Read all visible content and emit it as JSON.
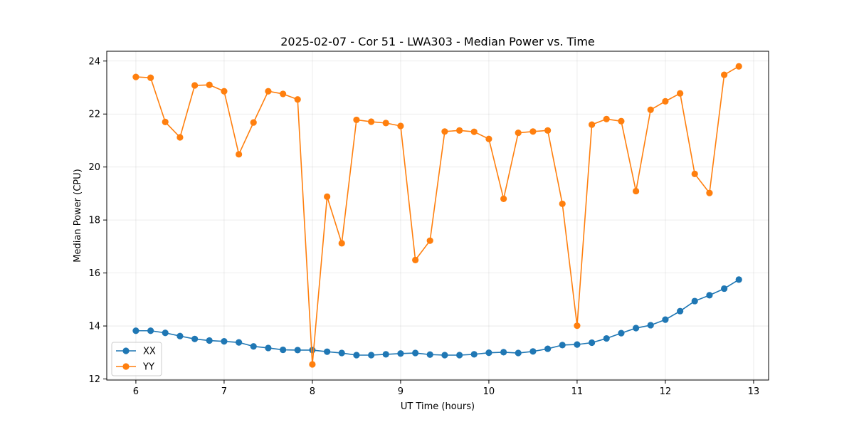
{
  "chart_data": {
    "type": "line",
    "title": "2025-02-07 - Cor 51 - LWA303 - Median Power vs. Time",
    "xlabel": "UT Time (hours)",
    "ylabel": "Median Power (CPU)",
    "xlim": [
      5.67,
      13.17
    ],
    "ylim": [
      11.96,
      24.37
    ],
    "xticks": [
      6,
      7,
      8,
      9,
      10,
      11,
      12,
      13
    ],
    "yticks": [
      12,
      14,
      16,
      18,
      20,
      22,
      24
    ],
    "grid": true,
    "legend_position": "lower-left",
    "x": [
      6.0,
      6.167,
      6.333,
      6.5,
      6.667,
      6.833,
      7.0,
      7.167,
      7.333,
      7.5,
      7.667,
      7.833,
      8.0,
      8.167,
      8.333,
      8.5,
      8.667,
      8.833,
      9.0,
      9.167,
      9.333,
      9.5,
      9.667,
      9.833,
      10.0,
      10.167,
      10.333,
      10.5,
      10.667,
      10.833,
      11.0,
      11.167,
      11.333,
      11.5,
      11.667,
      11.833,
      12.0,
      12.167,
      12.333,
      12.5,
      12.667,
      12.833
    ],
    "series": [
      {
        "name": "XX",
        "color": "#1f77b4",
        "values": [
          13.82,
          13.82,
          13.74,
          13.62,
          13.51,
          13.45,
          13.42,
          13.38,
          13.23,
          13.17,
          13.1,
          13.09,
          13.09,
          13.03,
          12.98,
          12.9,
          12.9,
          12.93,
          12.96,
          12.98,
          12.92,
          12.9,
          12.9,
          12.93,
          12.99,
          13.01,
          12.98,
          13.04,
          13.14,
          13.28,
          13.3,
          13.37,
          13.53,
          13.73,
          13.92,
          14.03,
          14.24,
          14.56,
          14.94,
          15.16,
          15.41,
          15.75
        ]
      },
      {
        "name": "YY",
        "color": "#ff7f0e",
        "values": [
          23.4,
          23.37,
          21.7,
          21.12,
          23.08,
          23.1,
          22.86,
          20.48,
          21.68,
          22.86,
          22.76,
          22.55,
          12.55,
          18.88,
          17.12,
          21.78,
          21.71,
          21.66,
          21.55,
          16.49,
          17.22,
          21.34,
          21.38,
          21.33,
          21.06,
          18.8,
          21.29,
          21.34,
          21.38,
          18.61,
          14.01,
          21.6,
          21.81,
          21.73,
          19.09,
          22.16,
          22.48,
          22.78,
          19.74,
          19.02,
          23.48,
          23.8
        ]
      }
    ]
  }
}
